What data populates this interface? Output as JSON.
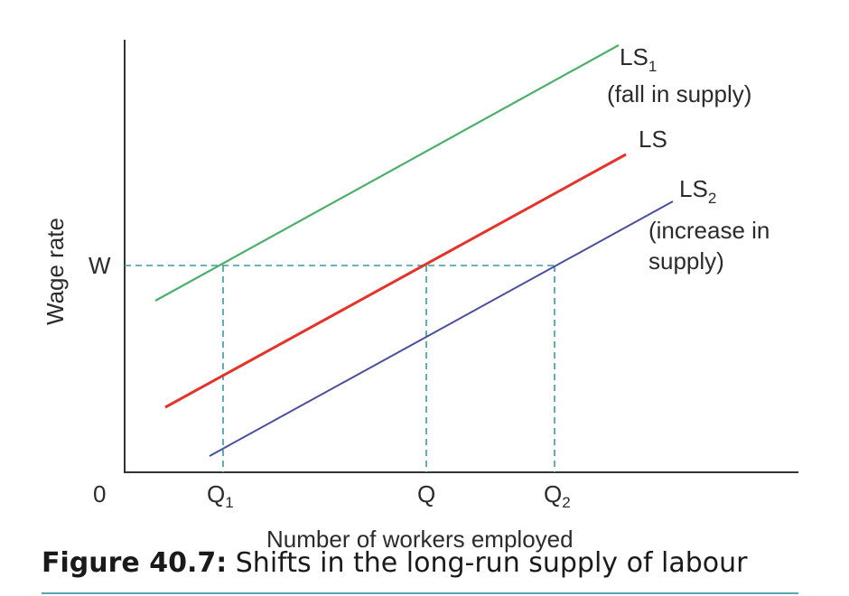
{
  "chart_data": {
    "type": "line",
    "title": "Shifts in the long-run supply of labour",
    "figure_label": "Figure 40.7:",
    "xlabel": "Number of workers employed",
    "ylabel": "Wage rate",
    "origin_label": "0",
    "x_ticks": [
      "Q1",
      "Q",
      "Q2"
    ],
    "y_ticks": [
      "W"
    ],
    "series": [
      {
        "name": "LS1",
        "label_main": "LS",
        "label_sub": "1",
        "note": "(fall in supply)",
        "color": "#4caf6b"
      },
      {
        "name": "LS",
        "label_main": "LS",
        "label_sub": "",
        "note": "",
        "color": "#e5332a"
      },
      {
        "name": "LS2",
        "label_main": "LS",
        "label_sub": "2",
        "note_lines": [
          "(increase in",
          "supply)"
        ],
        "color": "#4a4f9c"
      }
    ],
    "guide_color": "#3a9aa8"
  }
}
